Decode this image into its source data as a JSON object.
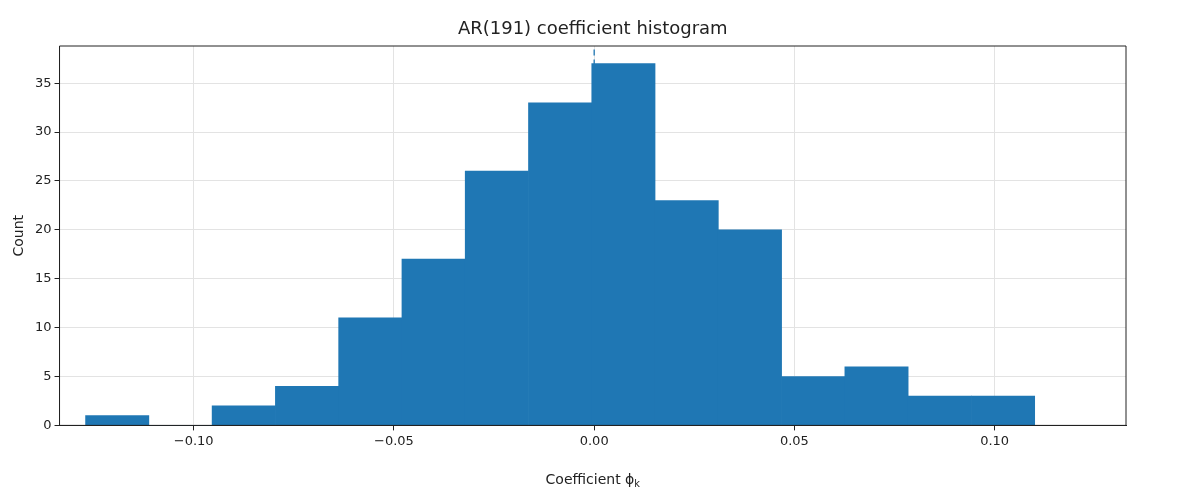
{
  "chart_data": {
    "type": "histogram",
    "title": "AR(191) coefficient histogram",
    "xlabel": "Coefficient ϕ$_{k}$",
    "ylabel": "Count",
    "bins": [
      -0.127,
      -0.1112,
      -0.0954,
      -0.0796,
      -0.0638,
      -0.048,
      -0.0322,
      -0.0164,
      -0.0006,
      0.0152,
      0.031,
      0.0468,
      0.0626,
      0.0784,
      0.0942,
      0.11
    ],
    "values": [
      1,
      0,
      2,
      4,
      11,
      17,
      26,
      33,
      37,
      23,
      20,
      5,
      6,
      3,
      3
    ],
    "color": "#1f77b4",
    "xlim": [
      -0.1335,
      0.1328
    ],
    "xticks": [
      {
        "value": -0.1,
        "label": "−0.10"
      },
      {
        "value": -0.05,
        "label": "−0.05"
      },
      {
        "value": 0,
        "label": "0.00"
      },
      {
        "value": 0.05,
        "label": "0.05"
      },
      {
        "value": 0.1,
        "label": "0.10"
      }
    ],
    "ylim": [
      0,
      38.8
    ],
    "yticks": [
      0,
      5,
      10,
      15,
      20,
      25,
      30,
      35
    ],
    "ref_lines": [
      {
        "axis": "x",
        "value": 0,
        "color": "#1f77b4",
        "line_style": "dashed"
      }
    ],
    "grid": true
  }
}
